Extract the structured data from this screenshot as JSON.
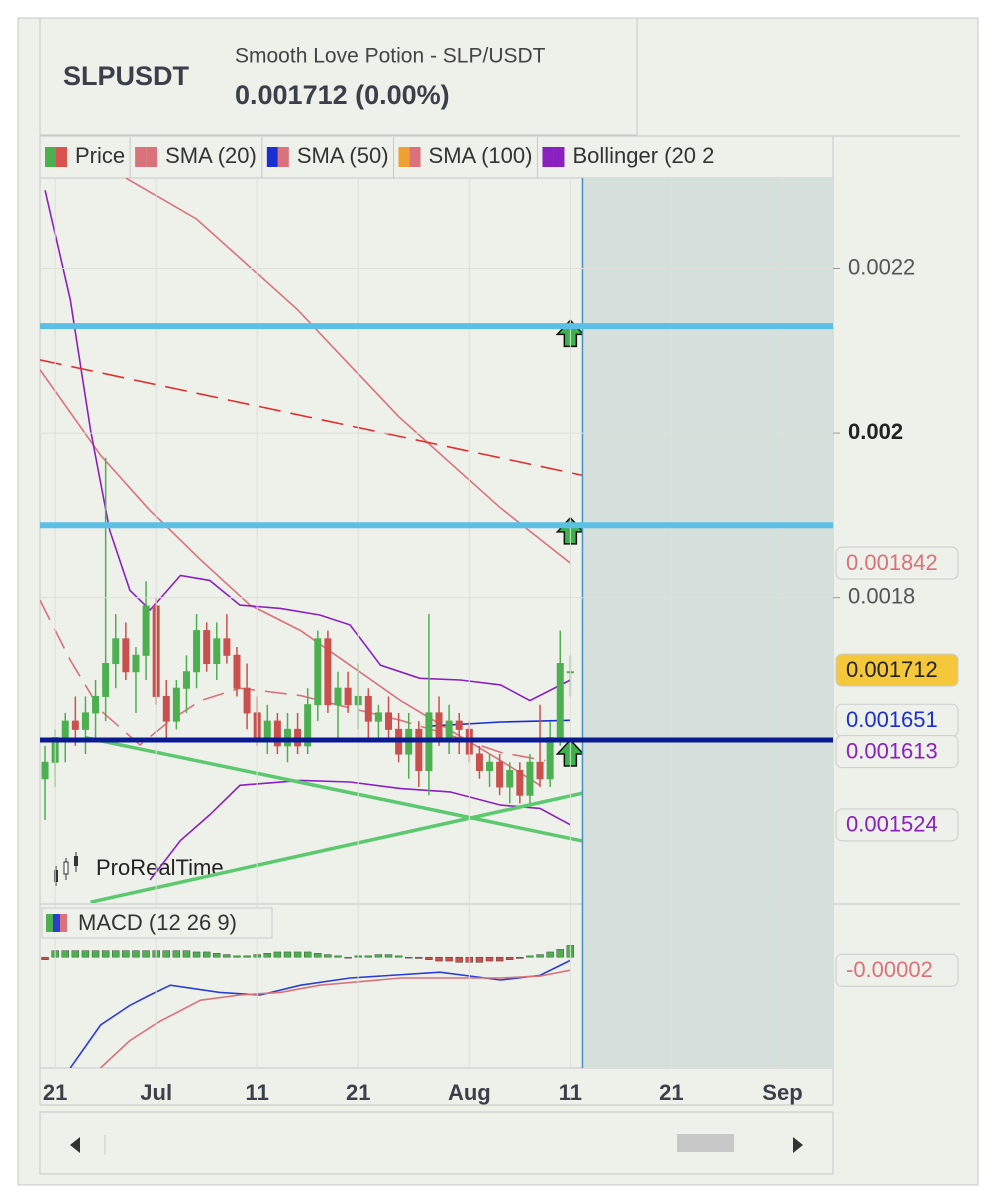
{
  "header": {
    "symbol": "SLPUSDT",
    "name": "Smooth Love Potion - SLP/USDT",
    "quote": "0.001712 (0.00%)"
  },
  "legend": [
    {
      "name": "Price",
      "colors": [
        "#4cb050",
        "#d9534f"
      ]
    },
    {
      "name": "SMA (20)",
      "colors": [
        "#d9727a",
        "#d9727a"
      ]
    },
    {
      "name": "SMA (50)",
      "colors": [
        "#1a2fd0",
        "#d9727a"
      ]
    },
    {
      "name": "SMA (100)",
      "colors": [
        "#f0a030",
        "#d9727a"
      ]
    },
    {
      "name": "Bollinger (20 2",
      "colors": [
        "#8a20c0",
        "#8a20c0"
      ]
    }
  ],
  "watermark": "ProRealTime",
  "chart_data": [
    {
      "type": "candlestick",
      "xlim": [
        19.5,
        98
      ],
      "ylim": [
        0.001429,
        0.00231
      ],
      "grid": true,
      "xticks": [
        {
          "value": 21,
          "label": "21"
        },
        {
          "value": 31,
          "label": "Jul"
        },
        {
          "value": 41,
          "label": "11"
        },
        {
          "value": 51,
          "label": "21"
        },
        {
          "value": 62,
          "label": "Aug"
        },
        {
          "value": 72,
          "label": "11"
        },
        {
          "value": 82,
          "label": "21"
        },
        {
          "value": 93,
          "label": "Sep"
        }
      ],
      "yticks": [
        0.0022,
        0.002,
        0.0018
      ],
      "up_color": "#4cb050",
      "down_color": "#c9504c",
      "x": [
        20,
        21,
        22,
        23,
        24,
        25,
        26,
        27,
        28,
        29,
        30,
        31,
        32,
        33,
        34,
        35,
        36,
        37,
        38,
        39,
        40,
        41,
        42,
        43,
        44,
        45,
        46,
        47,
        48,
        49,
        50,
        51,
        52,
        53,
        54,
        55,
        56,
        57,
        58,
        59,
        60,
        61,
        62,
        63,
        64,
        65,
        66,
        67,
        68,
        69,
        70,
        71,
        72
      ],
      "ohlc": [
        [
          0.00158,
          0.00162,
          0.00153,
          0.0016
        ],
        [
          0.0016,
          0.00164,
          0.00157,
          0.00163
        ],
        [
          0.00163,
          0.00166,
          0.0016,
          0.00165
        ],
        [
          0.00165,
          0.00168,
          0.00162,
          0.00164
        ],
        [
          0.00164,
          0.00168,
          0.00161,
          0.00166
        ],
        [
          0.00166,
          0.0017,
          0.00163,
          0.00168
        ],
        [
          0.00168,
          0.00197,
          0.00165,
          0.00172
        ],
        [
          0.00172,
          0.00178,
          0.00169,
          0.00175
        ],
        [
          0.00175,
          0.00177,
          0.0017,
          0.00171
        ],
        [
          0.00171,
          0.00174,
          0.00166,
          0.00173
        ],
        [
          0.00173,
          0.00182,
          0.0017,
          0.00179
        ],
        [
          0.00179,
          0.0018,
          0.00167,
          0.00168
        ],
        [
          0.00168,
          0.0017,
          0.00163,
          0.00165
        ],
        [
          0.00165,
          0.0017,
          0.00164,
          0.00169
        ],
        [
          0.00169,
          0.00173,
          0.00166,
          0.00171
        ],
        [
          0.00171,
          0.00178,
          0.00169,
          0.00176
        ],
        [
          0.00176,
          0.00177,
          0.00171,
          0.00172
        ],
        [
          0.00172,
          0.00177,
          0.0017,
          0.00175
        ],
        [
          0.00175,
          0.00178,
          0.00172,
          0.00173
        ],
        [
          0.00173,
          0.00174,
          0.00168,
          0.00169
        ],
        [
          0.00169,
          0.00172,
          0.00164,
          0.00166
        ],
        [
          0.00166,
          0.00168,
          0.00162,
          0.00163
        ],
        [
          0.00163,
          0.00167,
          0.00161,
          0.00165
        ],
        [
          0.00165,
          0.00166,
          0.00161,
          0.00162
        ],
        [
          0.00162,
          0.00166,
          0.0016,
          0.00164
        ],
        [
          0.00164,
          0.00166,
          0.00161,
          0.00162
        ],
        [
          0.00162,
          0.00169,
          0.00161,
          0.00167
        ],
        [
          0.00167,
          0.00176,
          0.00165,
          0.00175
        ],
        [
          0.00175,
          0.00176,
          0.00166,
          0.00167
        ],
        [
          0.00167,
          0.00171,
          0.00163,
          0.00169
        ],
        [
          0.00169,
          0.00171,
          0.00166,
          0.00167
        ],
        [
          0.00167,
          0.00172,
          0.00164,
          0.00168
        ],
        [
          0.00168,
          0.00169,
          0.00163,
          0.00165
        ],
        [
          0.00165,
          0.00167,
          0.00163,
          0.00166
        ],
        [
          0.00166,
          0.00168,
          0.00163,
          0.00164
        ],
        [
          0.00164,
          0.00166,
          0.0016,
          0.00161
        ],
        [
          0.00161,
          0.00166,
          0.00158,
          0.00164
        ],
        [
          0.00164,
          0.00165,
          0.00157,
          0.00159
        ],
        [
          0.00159,
          0.00178,
          0.00156,
          0.00166
        ],
        [
          0.00166,
          0.00168,
          0.00162,
          0.00163
        ],
        [
          0.00163,
          0.00167,
          0.00161,
          0.00165
        ],
        [
          0.00165,
          0.00166,
          0.00161,
          0.00164
        ],
        [
          0.00164,
          0.00165,
          0.0016,
          0.00161
        ],
        [
          0.00161,
          0.00162,
          0.00158,
          0.00159
        ],
        [
          0.00159,
          0.00161,
          0.00157,
          0.0016
        ],
        [
          0.0016,
          0.00161,
          0.00156,
          0.00157
        ],
        [
          0.00157,
          0.0016,
          0.00155,
          0.00159
        ],
        [
          0.00159,
          0.0016,
          0.00155,
          0.00156
        ],
        [
          0.00156,
          0.00161,
          0.00155,
          0.0016
        ],
        [
          0.0016,
          0.00167,
          0.00157,
          0.00158
        ],
        [
          0.00158,
          0.00165,
          0.00157,
          0.00163
        ],
        [
          0.00163,
          0.00176,
          0.00162,
          0.00172
        ],
        [
          0.00171,
          0.00173,
          0.00168,
          0.00171
        ]
      ],
      "lines": [
        {
          "color": "#d9727a",
          "width": 1.6,
          "dash": false,
          "x": [
            28,
            35,
            45,
            55,
            65,
            72
          ],
          "values": [
            0.00231,
            0.00226,
            0.00215,
            0.00202,
            0.00191,
            0.001842
          ]
        },
        {
          "color": "#d9727a",
          "width": 1.6,
          "dash": false,
          "x": [
            19.5,
            25.5,
            30.4,
            35.4,
            40.3,
            45.3,
            50.2,
            55.2,
            60.1,
            65.1,
            69
          ],
          "values": [
            0.002077,
            0.001973,
            0.001906,
            0.001846,
            0.001791,
            0.00176,
            0.001718,
            0.001675,
            0.001639,
            0.001602,
            0.001572
          ]
        },
        {
          "color": "#d9727a",
          "width": 1.6,
          "dash": true,
          "x": [
            19.5,
            22.5,
            25.5,
            29.4,
            32.4,
            35.4,
            39.3,
            45.3,
            50.2,
            55.2,
            60.1,
            65.1,
            69.5
          ],
          "values": [
            0.001797,
            0.001724,
            0.001663,
            0.001621,
            0.001651,
            0.001675,
            0.00169,
            0.001681,
            0.001666,
            0.001651,
            0.001633,
            0.001612,
            0.001602
          ]
        },
        {
          "color": "#1a2fd0",
          "width": 1.6,
          "dash": false,
          "x": [
            58.1,
            65.1,
            72
          ],
          "values": [
            0.001644,
            0.001649,
            0.001651
          ]
        },
        {
          "color": "#8a20c0",
          "width": 1.6,
          "dash": false,
          "x": [
            20,
            22.5,
            24.5,
            26.4,
            28.4,
            30.4,
            33.4,
            36.3,
            39.3,
            43.3,
            47.2,
            50.2,
            53.2,
            57.1,
            61.1,
            65.1,
            68,
            72
          ],
          "values": [
            0.002295,
            0.002162,
            0.002004,
            0.001882,
            0.001809,
            0.001785,
            0.001827,
            0.001821,
            0.001791,
            0.001787,
            0.001779,
            0.001767,
            0.001718,
            0.001702,
            0.0017,
            0.001694,
            0.001675,
            0.0017
          ]
        },
        {
          "color": "#8a20c0",
          "width": 1.6,
          "dash": false,
          "x": [
            30.4,
            33.4,
            36.3,
            39.3,
            45.3,
            50.2,
            55.2,
            60.1,
            65.1,
            69,
            72
          ],
          "values": [
            0.001457,
            0.001505,
            0.001536,
            0.001572,
            0.001578,
            0.001576,
            0.001568,
            0.001564,
            0.001548,
            0.001544,
            0.001524
          ]
        },
        {
          "color": "#e03030",
          "width": 1.6,
          "dash": true,
          "x": [
            19.5,
            98
          ],
          "values": [
            0.002089,
            0.001884
          ]
        },
        {
          "color": "#5cc870",
          "width": 3.5,
          "dash": false,
          "x": [
            24,
            98
          ],
          "values": [
            0.00163,
            0.001441
          ]
        },
        {
          "color": "#5cc870",
          "width": 3.5,
          "dash": false,
          "x": [
            24.5,
            98
          ],
          "values": [
            0.00143,
            0.00163
          ]
        }
      ],
      "levels": [
        {
          "value": 0.00213,
          "color": "#5bbfe6"
        },
        {
          "value": 0.001888,
          "color": "#5bbfe6"
        },
        {
          "value": 0.001627,
          "color": "#0a1a90"
        }
      ],
      "vline": 73.2,
      "arrows": {
        "x": [
          72,
          72,
          72
        ],
        "values": [
          0.00212,
          0.00188,
          0.00161
        ]
      },
      "price_labels": [
        {
          "value": 0.001842,
          "color": "#d9727a",
          "bg": "#eef0ea"
        },
        {
          "value": 0.001712,
          "color": "#222222",
          "bg": "#f5c73a"
        },
        {
          "value": 0.001651,
          "color": "#1a2fd0",
          "bg": "#eef0ea"
        },
        {
          "value": 0.001613,
          "color": "#8a20c0",
          "bg": "#eef0ea"
        },
        {
          "value": 0.001524,
          "color": "#8a20c0",
          "bg": "#eef0ea"
        }
      ]
    },
    {
      "type": "macd",
      "title": "MACD (12 26 9)",
      "ylim": [
        -0.00017,
        8e-05
      ],
      "x": [
        20,
        21,
        22,
        23,
        24,
        25,
        26,
        27,
        28,
        29,
        30,
        31,
        32,
        33,
        34,
        35,
        36,
        37,
        38,
        39,
        40,
        41,
        42,
        43,
        44,
        45,
        46,
        47,
        48,
        49,
        50,
        51,
        52,
        53,
        54,
        55,
        56,
        57,
        58,
        59,
        60,
        61,
        62,
        63,
        64,
        65,
        66,
        67,
        68,
        69,
        70,
        71,
        72
      ],
      "histogram": [
        -4e-06,
        1e-05,
        1e-05,
        1e-05,
        1e-05,
        1e-05,
        1e-05,
        1e-05,
        1e-05,
        1e-05,
        1e-05,
        1e-05,
        1e-05,
        1e-05,
        1e-05,
        8e-06,
        8e-06,
        6e-06,
        4e-06,
        2e-06,
        2e-06,
        4e-06,
        6e-06,
        8e-06,
        8e-06,
        8e-06,
        8e-06,
        6e-06,
        4e-06,
        2e-06,
        0,
        2e-06,
        2e-06,
        4e-06,
        4e-06,
        2e-06,
        0,
        -2e-06,
        -4e-06,
        -6e-06,
        -6e-06,
        -8e-06,
        -8e-06,
        -8e-06,
        -6e-06,
        -6e-06,
        -4e-06,
        -2e-06,
        2e-06,
        4e-06,
        8e-06,
        1.2e-05,
        1.8e-05
      ],
      "up_color": "#4cb050",
      "down_color": "#c9504c",
      "lines": [
        {
          "color": "#2a3fd0",
          "x": [
            22.5,
            25.5,
            28.4,
            30.4,
            32.4,
            37.3,
            41.3,
            45.3,
            50.2,
            59.1,
            65.1,
            69,
            72
          ],
          "values": [
            -0.00017,
            -0.000104,
            -7.4e-05,
            -5.8e-05,
            -4.3e-05,
            -5.4e-05,
            -5.8e-05,
            -4.3e-05,
            -3.2e-05,
            -2.3e-05,
            -3.5e-05,
            -2.8e-05,
            -5e-06
          ]
        },
        {
          "color": "#d9727a",
          "x": [
            25.5,
            28.4,
            31.4,
            35.4,
            39.3,
            43.3,
            47.2,
            55.2,
            65.1,
            69,
            72
          ],
          "values": [
            -0.00017,
            -0.000128,
            -9.8e-05,
            -6.6e-05,
            -5.8e-05,
            -5.4e-05,
            -4.3e-05,
            -3.2e-05,
            -3.2e-05,
            -2.9e-05,
            -2e-05
          ]
        }
      ],
      "price_labels": [
        {
          "value": -2e-05,
          "color": "#d9727a",
          "bg": "#eef0ea"
        }
      ]
    }
  ]
}
